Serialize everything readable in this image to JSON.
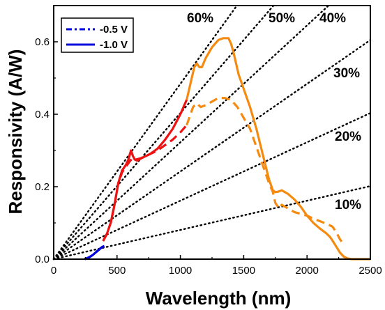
{
  "chart_data": {
    "type": "line",
    "xlabel": "Wavelength (nm)",
    "ylabel": "Responsivity (A/W)",
    "xlim": [
      0,
      2500
    ],
    "ylim": [
      0,
      0.7
    ],
    "xticks": [
      0,
      500,
      1000,
      1500,
      2000,
      2500
    ],
    "xtick_labels": [
      "0",
      "500",
      "1000",
      "1500",
      "2000",
      "2500"
    ],
    "yticks": [
      0.0,
      0.2,
      0.4,
      0.6
    ],
    "ytick_labels": [
      "0.0",
      "0.2",
      "0.4",
      "0.6"
    ],
    "grid": false,
    "legend": {
      "placement": "top-left",
      "entries": [
        {
          "label": "-0.5 V",
          "style": "dashed",
          "color": "#0000dd"
        },
        {
          "label": "-1.0 V",
          "style": "solid",
          "color": "#0000dd"
        }
      ]
    },
    "efficiency_lines": [
      {
        "label": "60%",
        "eqe": 0.6
      },
      {
        "label": "50%",
        "eqe": 0.5
      },
      {
        "label": "40%",
        "eqe": 0.4
      },
      {
        "label": "30%",
        "eqe": 0.3
      },
      {
        "label": "20%",
        "eqe": 0.2
      },
      {
        "label": "10%",
        "eqe": 0.1
      }
    ],
    "series": [
      {
        "name": "-1.0 V",
        "style": "solid",
        "segments": [
          {
            "color": "#0000dd",
            "x": [
              245,
              280,
              310,
              330,
              350,
              370,
              385,
              400
            ],
            "y": [
              0.0,
              0.005,
              0.012,
              0.018,
              0.024,
              0.03,
              0.034,
              0.036
            ]
          },
          {
            "color": "#ee1111",
            "x": [
              390,
              420,
              450,
              480,
              510,
              540,
              570,
              590,
              610,
              625,
              640,
              660,
              700,
              760,
              820,
              880,
              940,
              1000,
              1050
            ],
            "y": [
              0.05,
              0.07,
              0.1,
              0.15,
              0.21,
              0.245,
              0.26,
              0.275,
              0.3,
              0.285,
              0.275,
              0.272,
              0.28,
              0.29,
              0.305,
              0.33,
              0.36,
              0.4,
              0.44
            ]
          },
          {
            "color": "#f58a10",
            "x": [
              1050,
              1070,
              1090,
              1110,
              1130,
              1150,
              1170,
              1200,
              1250,
              1300,
              1340,
              1380,
              1400,
              1420,
              1440,
              1460,
              1500,
              1550,
              1600,
              1650,
              1700,
              1730,
              1750,
              1770,
              1800,
              1850,
              1900,
              1950,
              2000,
              2050,
              2100,
              2150,
              2180,
              2200,
              2230,
              2260,
              2290,
              2320,
              2350,
              2400,
              2450,
              2500
            ],
            "y": [
              0.44,
              0.47,
              0.5,
              0.53,
              0.54,
              0.53,
              0.53,
              0.555,
              0.585,
              0.605,
              0.61,
              0.61,
              0.595,
              0.57,
              0.54,
              0.51,
              0.47,
              0.42,
              0.36,
              0.29,
              0.22,
              0.19,
              0.185,
              0.186,
              0.19,
              0.18,
              0.165,
              0.145,
              0.12,
              0.1,
              0.085,
              0.072,
              0.062,
              0.052,
              0.035,
              0.018,
              0.007,
              0.002,
              0.0,
              0.0,
              0.0,
              0.0
            ]
          }
        ]
      },
      {
        "name": "-0.5 V",
        "style": "dashed",
        "segments": [
          {
            "color": "#0000dd",
            "x": [
              245,
              280,
              310,
              330,
              350,
              370,
              385,
              400
            ],
            "y": [
              0.0,
              0.005,
              0.012,
              0.018,
              0.024,
              0.03,
              0.034,
              0.036
            ]
          },
          {
            "color": "#ee1111",
            "x": [
              390,
              420,
              450,
              480,
              510,
              540,
              570,
              600,
              625,
              650,
              700,
              760,
              820,
              880,
              940,
              1000,
              1050
            ],
            "y": [
              0.05,
              0.07,
              0.1,
              0.15,
              0.21,
              0.24,
              0.255,
              0.27,
              0.28,
              0.275,
              0.28,
              0.29,
              0.3,
              0.315,
              0.33,
              0.35,
              0.37
            ]
          },
          {
            "color": "#f58a10",
            "x": [
              1050,
              1100,
              1130,
              1160,
              1200,
              1250,
              1300,
              1350,
              1400,
              1450,
              1500,
              1550,
              1600,
              1650,
              1700,
              1730,
              1750,
              1780,
              1800,
              1850,
              1900,
              1950,
              2000,
              2050,
              2100,
              2150,
              2200,
              2230,
              2260,
              2290
            ],
            "y": [
              0.37,
              0.42,
              0.43,
              0.42,
              0.425,
              0.435,
              0.445,
              0.445,
              0.44,
              0.42,
              0.39,
              0.36,
              0.31,
              0.26,
              0.21,
              0.185,
              0.155,
              0.14,
              0.15,
              0.14,
              0.13,
              0.125,
              0.12,
              0.112,
              0.105,
              0.098,
              0.09,
              0.075,
              0.055,
              0.04
            ]
          }
        ]
      }
    ]
  }
}
